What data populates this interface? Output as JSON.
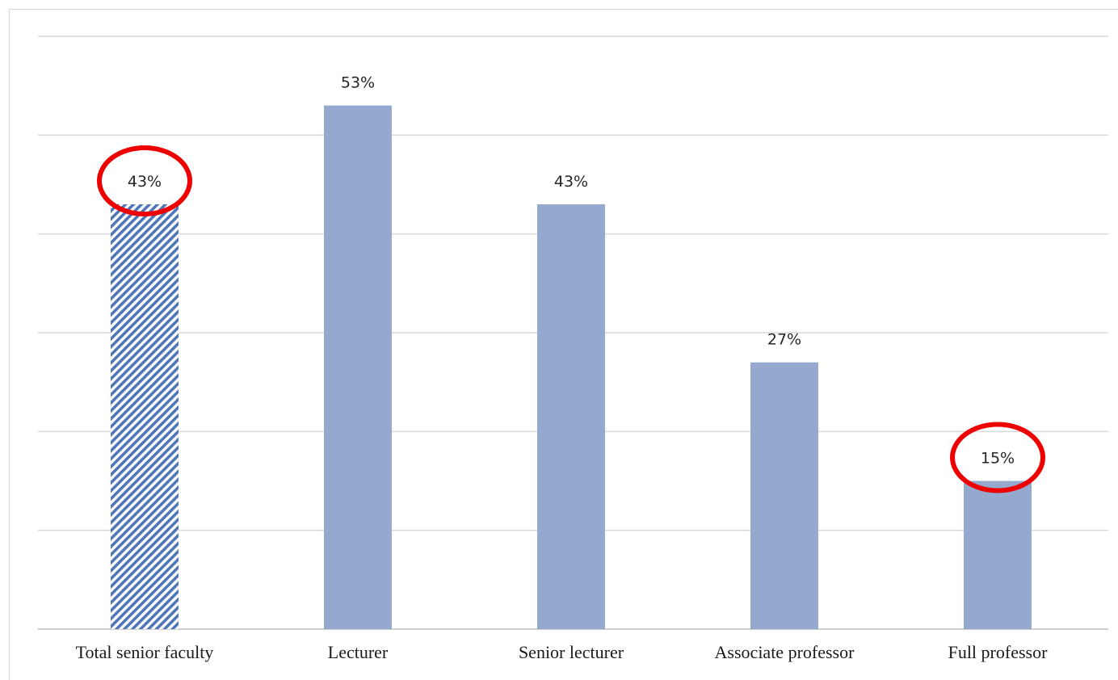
{
  "chart_data": {
    "type": "bar",
    "categories": [
      "Total senior faculty",
      "Lecturer",
      "Senior lecturer",
      "Associate professor",
      "Full professor"
    ],
    "values": [
      43,
      53,
      43,
      27,
      15
    ],
    "value_labels": [
      "43%",
      "53%",
      "43%",
      "27%",
      "15%"
    ],
    "unit": "%",
    "ylim": [
      0,
      60
    ],
    "gridlines": [
      0,
      10,
      20,
      30,
      40,
      50,
      60
    ],
    "grid": true,
    "legend": "none",
    "highlighted_categories": [
      "Total senior faculty",
      "Full professor"
    ],
    "patterned_categories": [
      "Total senior faculty"
    ],
    "colors": {
      "bar": "#95a9cf",
      "pattern_fg": "#4f76b8",
      "pattern_bg": "#ffffff",
      "highlight": "#ee0000",
      "grid": "#d9d9d9"
    }
  }
}
